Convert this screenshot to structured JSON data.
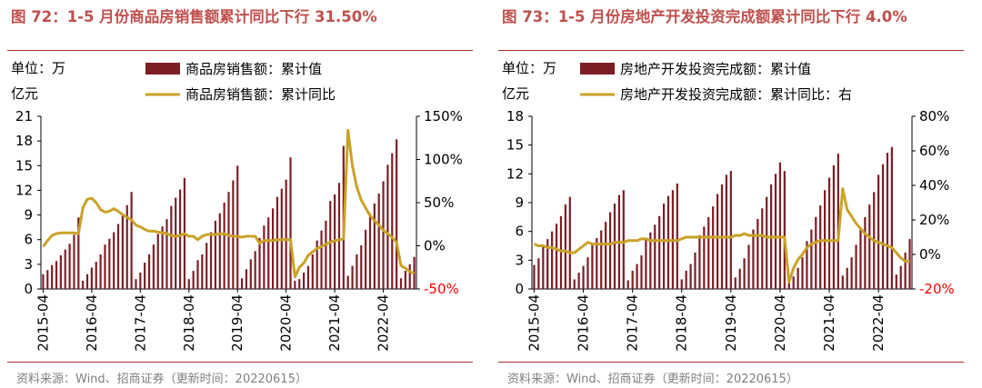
{
  "colors": {
    "title": "#c0504d",
    "bar": "#7b1e26",
    "line": "#c9a227",
    "negative_tick": "#ff0000",
    "rule": "#a8312d",
    "grid": "#e4e4e4"
  },
  "left": {
    "title": "图 72：1-5 月份商品房销售额累计同比下行 31.50%",
    "unit": [
      "单位：万",
      "亿元"
    ],
    "source": "资料来源：Wind、招商证券（更新时间：20220615）"
  },
  "right": {
    "title": "图 73：1-5 月份房地产开发投资完成额累计同比下行 4.0%",
    "unit": [
      "单位：万",
      "亿元"
    ],
    "source": "资料来源：Wind、招商证券（更新时间：20220615）"
  },
  "chart_data": [
    {
      "type": "bar",
      "subtype": "bar+line (dual axis)",
      "title": "1-5月份商品房销售额累计同比下行31.50%",
      "ylabel": "单位：万亿元",
      "ylim": [
        0,
        21
      ],
      "y_ticks": [
        "0",
        "3",
        "6",
        "9",
        "12",
        "15",
        "18",
        "21"
      ],
      "y2lim": [
        -50,
        150
      ],
      "y2_ticks": [
        "-50%",
        "0%",
        "50%",
        "100%",
        "150%"
      ],
      "x_ticks": [
        "2015-04",
        "2016-04",
        "2017-04",
        "2018-04",
        "2019-04",
        "2020-04",
        "2021-04",
        "2022-04"
      ],
      "start": "2015-04",
      "end": "2022-05",
      "months_per_year": "Jan-Feb combined, Mar–Dec monthly",
      "series": [
        {
          "name": "商品房销售额：累计值",
          "kind": "bar",
          "values": [
            1.8,
            2.3,
            2.9,
            3.4,
            4.1,
            4.8,
            5.5,
            6.6,
            8.7,
            1.0,
            1.8,
            2.6,
            3.3,
            4.2,
            5.4,
            6.1,
            6.9,
            7.9,
            8.9,
            10.2,
            11.8,
            1.2,
            2.0,
            3.2,
            4.2,
            5.4,
            6.7,
            7.6,
            8.5,
            10.1,
            11.1,
            12.1,
            13.5,
            1.2,
            2.2,
            3.5,
            4.2,
            5.6,
            6.9,
            8.3,
            9.2,
            10.5,
            11.8,
            13.2,
            15.0,
            1.3,
            2.4,
            3.6,
            4.6,
            6.2,
            7.7,
            8.7,
            9.8,
            11.2,
            12.2,
            13.3,
            16.0,
            1.0,
            1.2,
            2.0,
            2.8,
            4.2,
            5.9,
            7.1,
            8.3,
            10.7,
            11.5,
            12.9,
            17.4,
            1.6,
            2.8,
            4.2,
            5.3,
            7.2,
            9.2,
            10.4,
            11.6,
            13.1,
            15.1,
            16.5,
            18.2,
            1.3,
            2.2,
            3.0,
            3.9
          ]
        },
        {
          "name": "商品房销售额：累计同比",
          "kind": "line",
          "values": [
            -1,
            6,
            12,
            14,
            15,
            15,
            15,
            15,
            14,
            44,
            54,
            55,
            50,
            42,
            39,
            40,
            43,
            40,
            36,
            33,
            30,
            24,
            22,
            19,
            17,
            17,
            16,
            15,
            14,
            12,
            11,
            12,
            14,
            11,
            11,
            7,
            11,
            13,
            13,
            13,
            14,
            14,
            12,
            11,
            11,
            10,
            11,
            11,
            11,
            3,
            6,
            6,
            6,
            7,
            7,
            7,
            7,
            -36,
            -25,
            -20,
            -11,
            -7,
            -3,
            -1,
            2,
            4,
            6,
            7,
            8,
            134,
            93,
            68,
            53,
            44,
            35,
            29,
            24,
            18,
            14,
            10,
            4,
            -23,
            -26,
            -30,
            -32
          ]
        }
      ]
    },
    {
      "type": "bar",
      "subtype": "bar+line (dual axis)",
      "title": "1-5月份房地产开发投资完成额累计同比下行4.0%",
      "ylabel": "单位：万亿元",
      "ylim": [
        0,
        18
      ],
      "y_ticks": [
        "0",
        "3",
        "6",
        "9",
        "12",
        "15",
        "18"
      ],
      "y2lim": [
        -20,
        80
      ],
      "y2_ticks": [
        "-20%",
        "0%",
        "20%",
        "40%",
        "60%",
        "80%"
      ],
      "x_ticks": [
        "2015-04",
        "2016-04",
        "2017-04",
        "2018-04",
        "2019-04",
        "2020-04",
        "2021-04",
        "2022-04"
      ],
      "start": "2015-04",
      "end": "2022-05",
      "series": [
        {
          "name": "房地产开发投资完成额：累计值",
          "kind": "bar",
          "values": [
            2.5,
            3.2,
            4.4,
            5.2,
            6.0,
            6.8,
            7.6,
            8.8,
            9.6,
            1.0,
            1.7,
            2.4,
            3.3,
            4.6,
            5.3,
            6.1,
            7.0,
            8.0,
            8.9,
            9.8,
            10.3,
            0.9,
            1.9,
            2.6,
            3.5,
            5.1,
            5.9,
            6.7,
            7.6,
            8.9,
            9.7,
            10.3,
            11.0,
            1.0,
            1.9,
            2.6,
            3.8,
            5.6,
            6.5,
            7.5,
            8.6,
            9.9,
            10.9,
            11.9,
            12.3,
            1.2,
            2.1,
            3.2,
            4.6,
            6.2,
            7.3,
            8.4,
            9.6,
            10.9,
            12.0,
            13.2,
            12.3,
            1.0,
            1.3,
            2.2,
            3.3,
            5.0,
            6.2,
            7.5,
            8.7,
            10.3,
            11.6,
            12.9,
            14.1,
            1.4,
            2.2,
            3.3,
            4.6,
            6.2,
            7.5,
            8.8,
            10.1,
            11.9,
            13.0,
            14.2,
            14.8,
            1.5,
            2.4,
            3.8,
            5.2
          ]
        },
        {
          "name": "房地产开发投资完成额：累计同比：右",
          "kind": "line",
          "values": [
            6,
            5,
            5,
            4,
            4,
            3,
            2,
            2,
            1,
            1,
            3,
            5,
            7,
            6,
            6,
            6,
            6,
            6,
            7,
            7,
            7,
            8,
            8,
            8,
            9,
            9,
            8,
            8,
            8,
            8,
            8,
            8,
            8,
            9,
            10,
            10,
            10,
            10,
            10,
            10,
            10,
            10,
            10,
            10,
            10,
            11,
            11,
            12,
            11,
            11,
            11,
            11,
            10,
            10,
            10,
            10,
            10,
            -16,
            -8,
            -3,
            0,
            4,
            6,
            7,
            8,
            8,
            8,
            8,
            8,
            38,
            26,
            22,
            18,
            15,
            12,
            10,
            8,
            7,
            6,
            5,
            4,
            1,
            -2,
            -4,
            -4
          ]
        }
      ]
    }
  ]
}
